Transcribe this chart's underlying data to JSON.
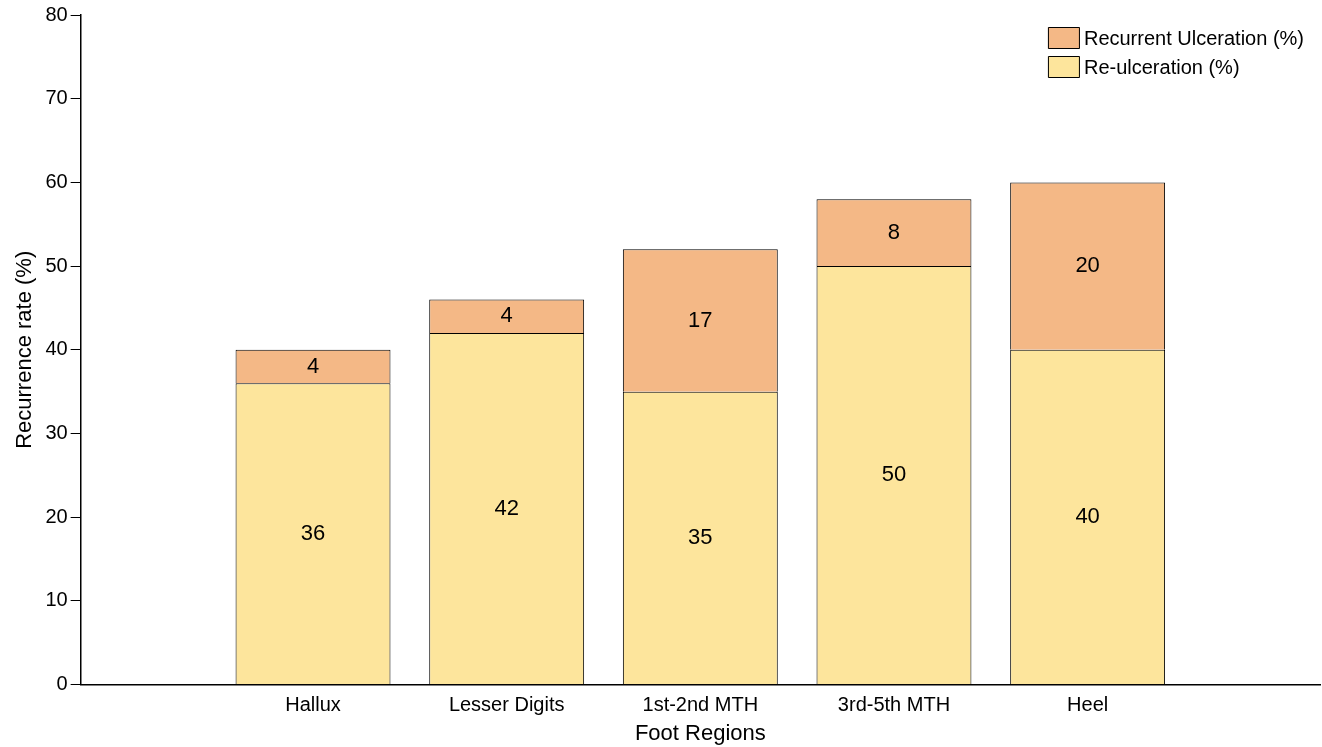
{
  "chart_data": {
    "type": "bar",
    "stacked": true,
    "xlabel": "Foot Regions",
    "ylabel": "Recurrence rate (%)",
    "categories": [
      "Hallux",
      "Lesser Digits",
      "1st-2nd MTH",
      "3rd-5th MTH",
      "Heel"
    ],
    "series": [
      {
        "name": "Re-ulceration (%)",
        "color": "#fde59c",
        "values": [
          36,
          42,
          35,
          50,
          40
        ]
      },
      {
        "name": "Recurrent Ulceration (%)",
        "color": "#f4b886",
        "values": [
          4,
          4,
          17,
          8,
          20
        ]
      }
    ],
    "ylim": [
      0,
      80
    ],
    "yticks": [
      0,
      10,
      20,
      30,
      40,
      50,
      60,
      70,
      80
    ],
    "grid": false,
    "legend": "top right",
    "data_labels": true
  }
}
